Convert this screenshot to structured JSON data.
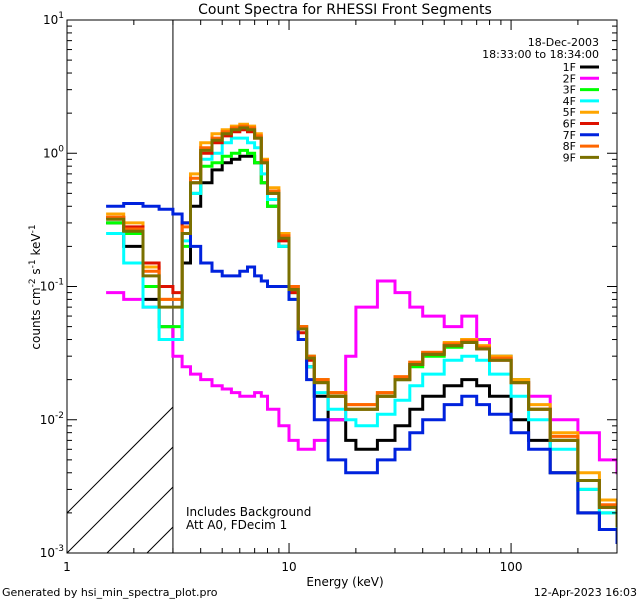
{
  "chart_data": {
    "type": "line",
    "title": "Count Spectra for RHESSI Front Segments",
    "xlabel": "Energy (keV)",
    "ylabel_base": "counts cm",
    "ylabel_exp1": "-2",
    "ylabel_mid": " s",
    "ylabel_exp2": "-1",
    "ylabel_mid2": " keV",
    "ylabel_exp3": "-1",
    "xscale": "log",
    "yscale": "log",
    "xlim": [
      1,
      300
    ],
    "ylim": [
      0.001,
      10
    ],
    "xticks": [
      {
        "value": 1,
        "label": "1"
      },
      {
        "value": 10,
        "label": "10"
      },
      {
        "value": 100,
        "label": "100"
      }
    ],
    "yticks": [
      {
        "value": 0.001,
        "base": "10",
        "exp": "-3"
      },
      {
        "value": 0.01,
        "base": "10",
        "exp": "-2"
      },
      {
        "value": 0.1,
        "base": "10",
        "exp": "-1"
      },
      {
        "value": 1,
        "base": "10",
        "exp": "0"
      },
      {
        "value": 10,
        "base": "10",
        "exp": "1"
      }
    ],
    "hatch_region_keV": [
      1,
      3
    ],
    "date": "18-Dec-2003",
    "time_range": "18:33:00 to 18:34:00",
    "annotation_line1": "Includes Background",
    "annotation_line2": "Att A0, FDecim 1",
    "footer_left": "Generated by hsi_min_spectra_plot.pro",
    "footer_right": "12-Apr-2023 16:03",
    "energy_keV": [
      1.5,
      1.8,
      2.2,
      2.6,
      3.0,
      3.3,
      3.6,
      4.0,
      4.5,
      5.0,
      5.5,
      6.0,
      6.5,
      7.0,
      7.5,
      8.0,
      9.0,
      10.0,
      11.0,
      12.0,
      13.0,
      15.0,
      18.0,
      20.0,
      25.0,
      30.0,
      35.0,
      40.0,
      50.0,
      60.0,
      70.0,
      80.0,
      100.0,
      120.0,
      150.0,
      200.0,
      250.0,
      300.0
    ],
    "series": [
      {
        "name": "1F",
        "color": "#000000",
        "values": [
          0.3,
          0.2,
          0.08,
          0.05,
          0.04,
          0.15,
          0.4,
          0.6,
          0.75,
          0.85,
          0.9,
          0.95,
          0.95,
          0.85,
          0.6,
          0.4,
          0.2,
          0.1,
          0.05,
          0.025,
          0.015,
          0.01,
          0.007,
          0.006,
          0.007,
          0.009,
          0.012,
          0.015,
          0.018,
          0.02,
          0.018,
          0.015,
          0.01,
          0.007,
          0.004,
          0.002,
          0.0015,
          0.0012
        ]
      },
      {
        "name": "2F",
        "color": "#ff00ff",
        "values": [
          0.09,
          0.08,
          0.07,
          0.05,
          0.03,
          0.025,
          0.022,
          0.02,
          0.018,
          0.017,
          0.016,
          0.015,
          0.015,
          0.016,
          0.015,
          0.012,
          0.009,
          0.007,
          0.006,
          0.006,
          0.007,
          0.01,
          0.03,
          0.07,
          0.11,
          0.09,
          0.07,
          0.06,
          0.05,
          0.06,
          0.04,
          0.03,
          0.02,
          0.015,
          0.01,
          0.008,
          0.005,
          0.004
        ]
      },
      {
        "name": "3F",
        "color": "#00ff00",
        "values": [
          0.3,
          0.25,
          0.1,
          0.05,
          0.05,
          0.2,
          0.5,
          0.8,
          0.85,
          0.95,
          1.0,
          1.05,
          1.0,
          0.85,
          0.6,
          0.4,
          0.2,
          0.09,
          0.05,
          0.03,
          0.02,
          0.015,
          0.012,
          0.012,
          0.015,
          0.02,
          0.025,
          0.03,
          0.035,
          0.04,
          0.035,
          0.03,
          0.02,
          0.012,
          0.007,
          0.003,
          0.002,
          0.0015
        ]
      },
      {
        "name": "4F",
        "color": "#00ffff",
        "values": [
          0.25,
          0.15,
          0.07,
          0.04,
          0.04,
          0.22,
          0.5,
          0.9,
          1.0,
          1.2,
          1.3,
          1.3,
          1.2,
          1.1,
          0.7,
          0.45,
          0.2,
          0.08,
          0.04,
          0.025,
          0.016,
          0.012,
          0.01,
          0.009,
          0.011,
          0.014,
          0.018,
          0.022,
          0.028,
          0.03,
          0.028,
          0.022,
          0.015,
          0.01,
          0.006,
          0.003,
          0.002,
          0.0015
        ]
      },
      {
        "name": "5F",
        "color": "#ffa500",
        "values": [
          0.35,
          0.3,
          0.14,
          0.08,
          0.08,
          0.3,
          0.7,
          1.2,
          1.4,
          1.5,
          1.6,
          1.65,
          1.6,
          1.4,
          0.9,
          0.55,
          0.25,
          0.1,
          0.05,
          0.03,
          0.02,
          0.016,
          0.013,
          0.013,
          0.016,
          0.021,
          0.027,
          0.032,
          0.038,
          0.04,
          0.036,
          0.03,
          0.02,
          0.013,
          0.008,
          0.004,
          0.0025,
          0.0018
        ]
      },
      {
        "name": "6F",
        "color": "#dd1100",
        "values": [
          0.33,
          0.28,
          0.15,
          0.1,
          0.09,
          0.3,
          0.6,
          1.0,
          1.2,
          1.35,
          1.45,
          1.5,
          1.45,
          1.3,
          0.85,
          0.5,
          0.22,
          0.09,
          0.045,
          0.028,
          0.019,
          0.015,
          0.012,
          0.012,
          0.015,
          0.02,
          0.026,
          0.031,
          0.036,
          0.038,
          0.034,
          0.028,
          0.019,
          0.012,
          0.007,
          0.0035,
          0.0022,
          0.0016
        ]
      },
      {
        "name": "7F",
        "color": "#0022dd",
        "values": [
          0.4,
          0.42,
          0.4,
          0.38,
          0.35,
          0.3,
          0.2,
          0.15,
          0.13,
          0.12,
          0.12,
          0.13,
          0.14,
          0.12,
          0.11,
          0.1,
          0.1,
          0.08,
          0.04,
          0.02,
          0.01,
          0.005,
          0.004,
          0.004,
          0.005,
          0.006,
          0.008,
          0.01,
          0.013,
          0.015,
          0.013,
          0.011,
          0.008,
          0.006,
          0.004,
          0.002,
          0.0015,
          0.0012
        ]
      },
      {
        "name": "8F",
        "color": "#ff6600",
        "values": [
          0.33,
          0.27,
          0.13,
          0.08,
          0.08,
          0.28,
          0.65,
          1.1,
          1.3,
          1.45,
          1.55,
          1.6,
          1.55,
          1.35,
          0.88,
          0.52,
          0.24,
          0.1,
          0.05,
          0.03,
          0.02,
          0.016,
          0.013,
          0.013,
          0.016,
          0.021,
          0.027,
          0.032,
          0.037,
          0.039,
          0.035,
          0.029,
          0.019,
          0.012,
          0.0075,
          0.0035,
          0.0023,
          0.0017
        ]
      },
      {
        "name": "9F",
        "color": "#7a7000",
        "values": [
          0.32,
          0.26,
          0.12,
          0.07,
          0.07,
          0.25,
          0.6,
          1.05,
          1.25,
          1.4,
          1.5,
          1.55,
          1.5,
          1.3,
          0.85,
          0.5,
          0.23,
          0.095,
          0.048,
          0.029,
          0.019,
          0.015,
          0.012,
          0.012,
          0.015,
          0.02,
          0.026,
          0.031,
          0.036,
          0.038,
          0.034,
          0.028,
          0.019,
          0.012,
          0.007,
          0.0035,
          0.0022,
          0.0016
        ]
      }
    ]
  }
}
